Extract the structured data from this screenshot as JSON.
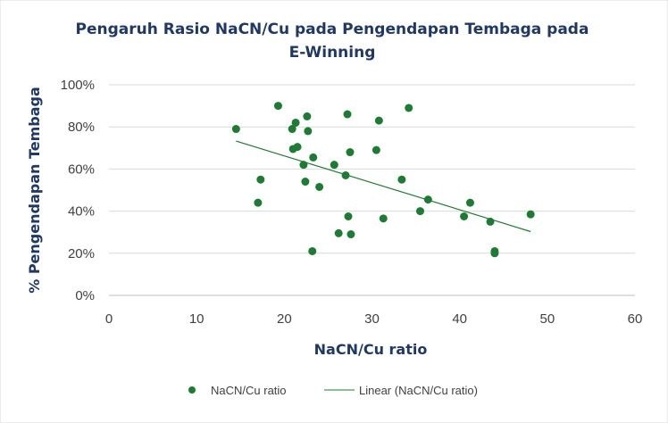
{
  "chart_data": {
    "type": "scatter",
    "title": "Pengaruh Rasio NaCN/Cu pada Pengendapan Tembaga pada E-Winning",
    "xlabel": "NaCN/Cu ratio",
    "ylabel": "% Pengendapan Tembaga",
    "xlim": [
      0,
      60
    ],
    "ylim": [
      0,
      100
    ],
    "x_ticks": [
      "0",
      "10",
      "20",
      "30",
      "40",
      "50",
      "60"
    ],
    "y_ticks": [
      "0%",
      "20%",
      "40%",
      "60%",
      "80%",
      "100%"
    ],
    "grid": "horizontal",
    "legend_position": "bottom",
    "colors": {
      "marker": "#1e7b34",
      "trendline": "#1e7b34",
      "title": "#1f3864",
      "grid": "#d9d9d9"
    },
    "series": [
      {
        "name": "NaCN/Cu ratio",
        "kind": "scatter",
        "points": [
          [
            14.5,
            79
          ],
          [
            17.0,
            44
          ],
          [
            17.3,
            55
          ],
          [
            19.3,
            90
          ],
          [
            20.9,
            79
          ],
          [
            21.0,
            69.5
          ],
          [
            21.3,
            82
          ],
          [
            21.5,
            70.5
          ],
          [
            22.2,
            62
          ],
          [
            22.4,
            54
          ],
          [
            22.6,
            85
          ],
          [
            22.7,
            78
          ],
          [
            23.3,
            65.5
          ],
          [
            23.2,
            21
          ],
          [
            24.0,
            51.5
          ],
          [
            25.7,
            62
          ],
          [
            26.2,
            29.5
          ],
          [
            27.0,
            57
          ],
          [
            27.2,
            86
          ],
          [
            27.3,
            37.5
          ],
          [
            27.5,
            68
          ],
          [
            27.6,
            29
          ],
          [
            30.5,
            69
          ],
          [
            30.8,
            83
          ],
          [
            31.3,
            36.5
          ],
          [
            33.4,
            55
          ],
          [
            34.2,
            89
          ],
          [
            35.5,
            40
          ],
          [
            36.4,
            45.5
          ],
          [
            40.5,
            37.5
          ],
          [
            41.2,
            44
          ],
          [
            43.5,
            35
          ],
          [
            44.0,
            21
          ],
          [
            44.0,
            20
          ],
          [
            48.1,
            38.5
          ]
        ]
      },
      {
        "name": "Linear (NaCN/Cu ratio)",
        "kind": "linear-trend",
        "points": [
          [
            14.5,
            73.3
          ],
          [
            48.1,
            30.3
          ]
        ]
      }
    ]
  }
}
